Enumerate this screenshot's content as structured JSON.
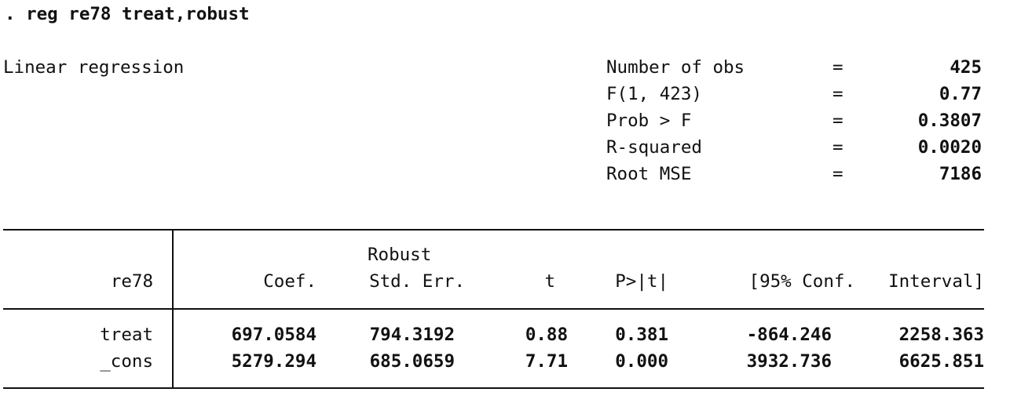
{
  "command": ". reg re78 treat,robust",
  "title": "Linear regression",
  "stats": [
    {
      "label": "Number of obs",
      "eq": "=",
      "value": "425"
    },
    {
      "label": "F(1, 423)",
      "eq": "=",
      "value": "0.77"
    },
    {
      "label": "Prob > F",
      "eq": "=",
      "value": "0.3807"
    },
    {
      "label": "R-squared",
      "eq": "=",
      "value": "0.0020"
    },
    {
      "label": "Root MSE",
      "eq": "=",
      "value": "7186"
    }
  ],
  "table": {
    "header_top": "Robust",
    "depvar": "re78",
    "headers": [
      "Coef.",
      "Std. Err.",
      "t",
      "P>|t|",
      "[95% Conf.",
      "Interval]"
    ],
    "rows": [
      {
        "name": "treat",
        "values": [
          "697.0584",
          "794.3192",
          "0.88",
          "0.381",
          "-864.246",
          "2258.363"
        ]
      },
      {
        "name": "_cons",
        "values": [
          "5279.294",
          "685.0659",
          "7.71",
          "0.000",
          "3932.736",
          "6625.851"
        ]
      }
    ]
  }
}
